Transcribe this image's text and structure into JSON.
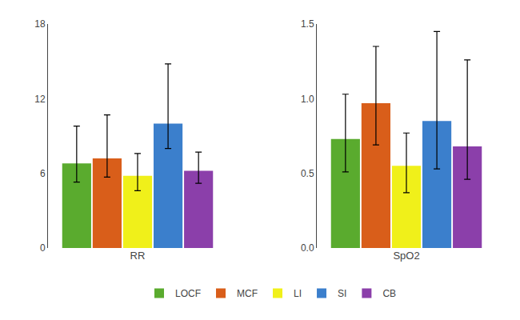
{
  "chart_data": [
    {
      "type": "bar",
      "categories": [
        "RR"
      ],
      "series": [
        {
          "name": "LOCF",
          "color": "#5aab2e",
          "values": [
            6.8
          ],
          "errors_upper": [
            3.0
          ],
          "errors_lower": [
            1.5
          ]
        },
        {
          "name": "MCF",
          "color": "#d95e1a",
          "values": [
            7.2
          ],
          "errors_upper": [
            3.5
          ],
          "errors_lower": [
            1.5
          ]
        },
        {
          "name": "LI",
          "color": "#f0f01a",
          "values": [
            5.8
          ],
          "errors_upper": [
            1.8
          ],
          "errors_lower": [
            1.2
          ]
        },
        {
          "name": "SI",
          "color": "#3b7fcc",
          "values": [
            10.0
          ],
          "errors_upper": [
            4.8
          ],
          "errors_lower": [
            2.0
          ]
        },
        {
          "name": "CB",
          "color": "#8b3faa",
          "values": [
            6.2
          ],
          "errors_upper": [
            1.5
          ],
          "errors_lower": [
            1.0
          ]
        }
      ],
      "ylim": [
        0,
        18
      ],
      "yticks": [
        0,
        6,
        12,
        18
      ],
      "grid": false,
      "legend": "bottom"
    },
    {
      "type": "bar",
      "categories": [
        "SpO2"
      ],
      "series": [
        {
          "name": "LOCF",
          "color": "#5aab2e",
          "values": [
            0.73
          ],
          "errors_upper": [
            0.3
          ],
          "errors_lower": [
            0.22
          ]
        },
        {
          "name": "MCF",
          "color": "#d95e1a",
          "values": [
            0.97
          ],
          "errors_upper": [
            0.38
          ],
          "errors_lower": [
            0.28
          ]
        },
        {
          "name": "LI",
          "color": "#f0f01a",
          "values": [
            0.55
          ],
          "errors_upper": [
            0.22
          ],
          "errors_lower": [
            0.18
          ]
        },
        {
          "name": "SI",
          "color": "#3b7fcc",
          "values": [
            0.85
          ],
          "errors_upper": [
            0.6
          ],
          "errors_lower": [
            0.32
          ]
        },
        {
          "name": "CB",
          "color": "#8b3faa",
          "values": [
            0.68
          ],
          "errors_upper": [
            0.58
          ],
          "errors_lower": [
            0.22
          ]
        }
      ],
      "ylim": [
        0,
        1.5
      ],
      "yticks": [
        {
          "value": 0,
          "label": "0.0"
        },
        0.5,
        {
          "value": 1,
          "label": "1.0"
        },
        1.5
      ],
      "grid": false
    }
  ]
}
